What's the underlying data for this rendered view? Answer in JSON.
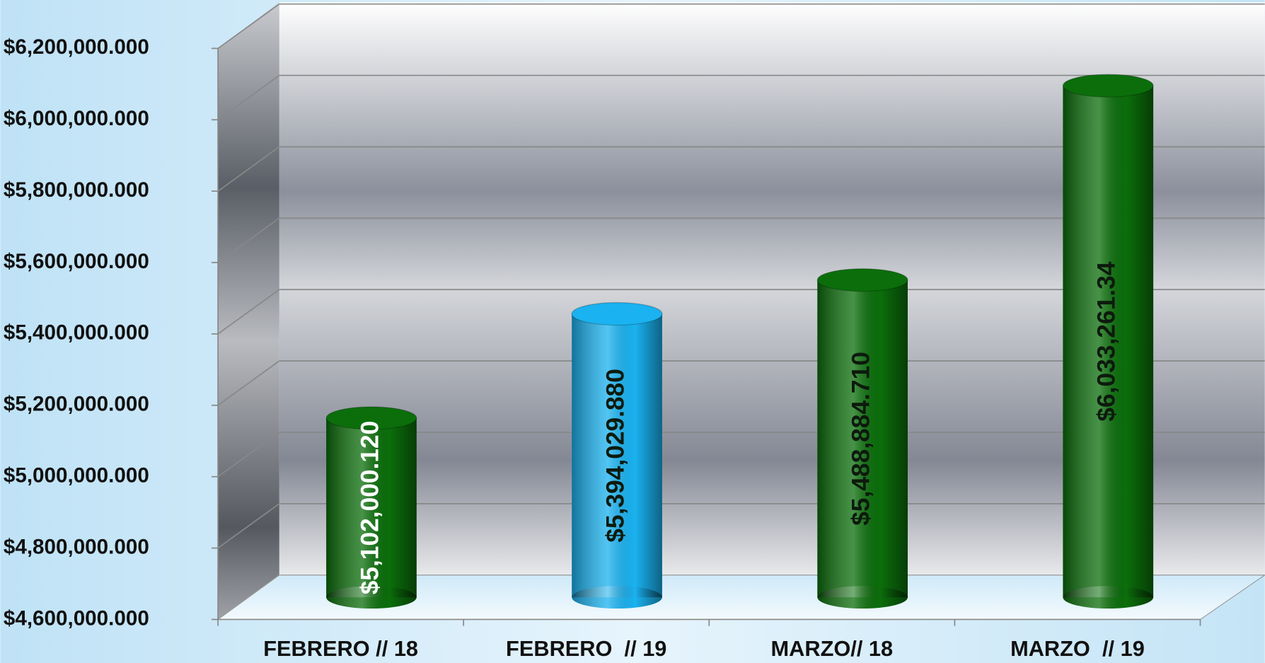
{
  "chart_data": {
    "type": "bar",
    "categories": [
      "FEBRERO // 18",
      "FEBRERO  // 19",
      "MARZO// 18",
      "MARZO  // 19"
    ],
    "values": [
      5102000.12,
      5394029.88,
      5488884.71,
      6033261.34
    ],
    "value_labels": [
      "$5,102,000.120",
      "$5,394,029.880",
      "$5,488,884.710",
      "$6,033,261.34"
    ],
    "colors": [
      "#0b6e0b",
      "#1ab2f0",
      "#0b6e0b",
      "#0b6e0b"
    ],
    "label_colors": [
      "#ffffff",
      "#0d1a0d",
      "#0d1a0d",
      "#0d1a0d"
    ],
    "ylim": [
      4600000,
      6200000
    ],
    "yticks": [
      {
        "value": 4600000,
        "label": "$4,600,000.000"
      },
      {
        "value": 4800000,
        "label": "$4,800,000.000"
      },
      {
        "value": 5000000,
        "label": "$5,000,000.000"
      },
      {
        "value": 5200000,
        "label": "$5,200,000.000"
      },
      {
        "value": 5400000,
        "label": "$5,400,000.000"
      },
      {
        "value": 5600000,
        "label": "$5,600,000.000"
      },
      {
        "value": 5800000,
        "label": "$5,800,000.000"
      },
      {
        "value": 6000000,
        "label": "$6,000,000.000"
      },
      {
        "value": 6200000,
        "label": "$6,200,000.000"
      }
    ],
    "grid": true
  }
}
